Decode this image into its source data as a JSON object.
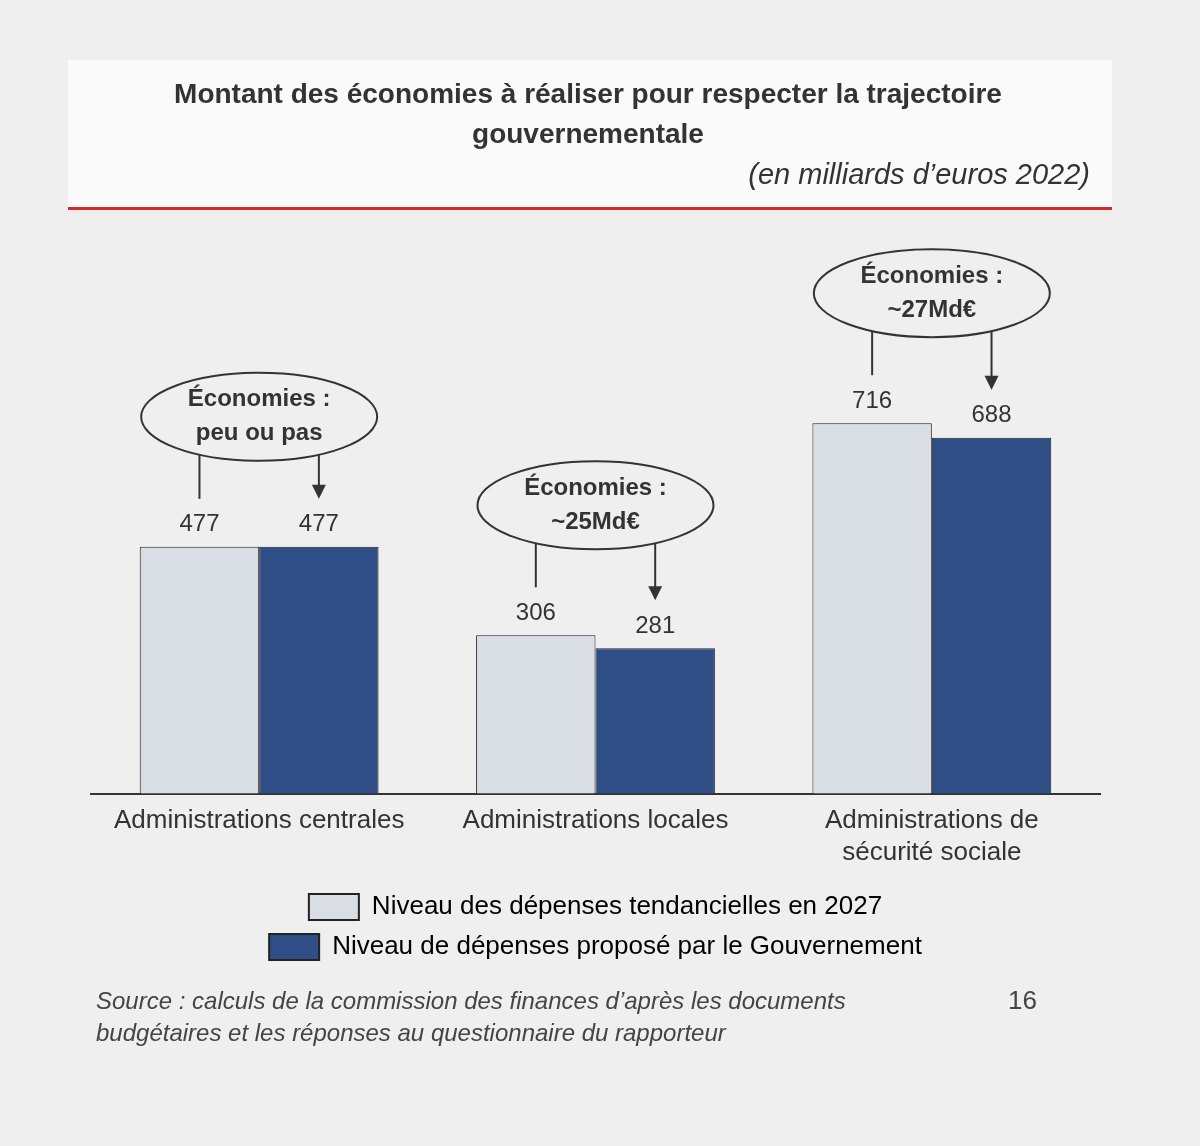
{
  "chart_data": {
    "type": "bar",
    "title": "Montant des économies à réaliser pour respecter la trajectoire gouvernementale",
    "subtitle": "(en milliards d’euros 2022)",
    "categories": [
      "Administrations centrales",
      "Administrations locales",
      "Administrations de sécurité sociale"
    ],
    "series": [
      {
        "name": "Niveau des dépenses tendancielles en 2027",
        "color": "#d9dde4",
        "values": [
          477,
          306,
          716
        ]
      },
      {
        "name": "Niveau de dépenses proposé par le Gouvernement",
        "color": "#2f4e85",
        "values": [
          477,
          281,
          688
        ]
      }
    ],
    "data_labels": true,
    "legend": "bottom",
    "grid": false,
    "annotations": [
      "Économies : peu ou pas",
      "Économies : ~25Md€",
      "Économies : ~27Md€",
      "Source : calculs de la commission des finances d’après les documents budgétaires et les réponses au questionnaire du rapporteur",
      "16"
    ]
  }
}
